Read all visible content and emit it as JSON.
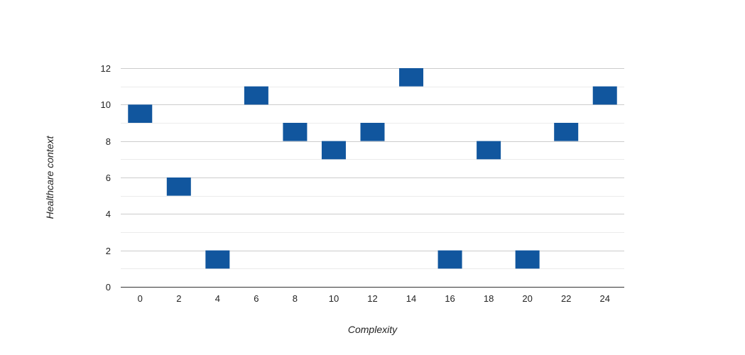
{
  "chart_data": {
    "type": "bar",
    "subtype": "floating-range",
    "xlabel": "Complexity",
    "ylabel": "Healthcare context",
    "x_ticks": [
      0,
      2,
      4,
      6,
      8,
      10,
      12,
      14,
      16,
      18,
      20,
      22,
      24
    ],
    "y_ticks": [
      0,
      2,
      4,
      6,
      8,
      10,
      12
    ],
    "xlim": [
      -1,
      25
    ],
    "ylim": [
      0,
      12
    ],
    "grid": true,
    "bar_color": "#11569e",
    "bars": [
      {
        "x": 0,
        "low": 9,
        "high": 10
      },
      {
        "x": 2,
        "low": 5,
        "high": 6
      },
      {
        "x": 4,
        "low": 1,
        "high": 2
      },
      {
        "x": 6,
        "low": 10,
        "high": 11
      },
      {
        "x": 8,
        "low": 8,
        "high": 9
      },
      {
        "x": 10,
        "low": 7,
        "high": 8
      },
      {
        "x": 12,
        "low": 8,
        "high": 9
      },
      {
        "x": 14,
        "low": 11,
        "high": 12
      },
      {
        "x": 16,
        "low": 1,
        "high": 2
      },
      {
        "x": 18,
        "low": 7,
        "high": 8
      },
      {
        "x": 20,
        "low": 1,
        "high": 2
      },
      {
        "x": 22,
        "low": 8,
        "high": 9
      },
      {
        "x": 24,
        "low": 10,
        "high": 11
      }
    ]
  }
}
